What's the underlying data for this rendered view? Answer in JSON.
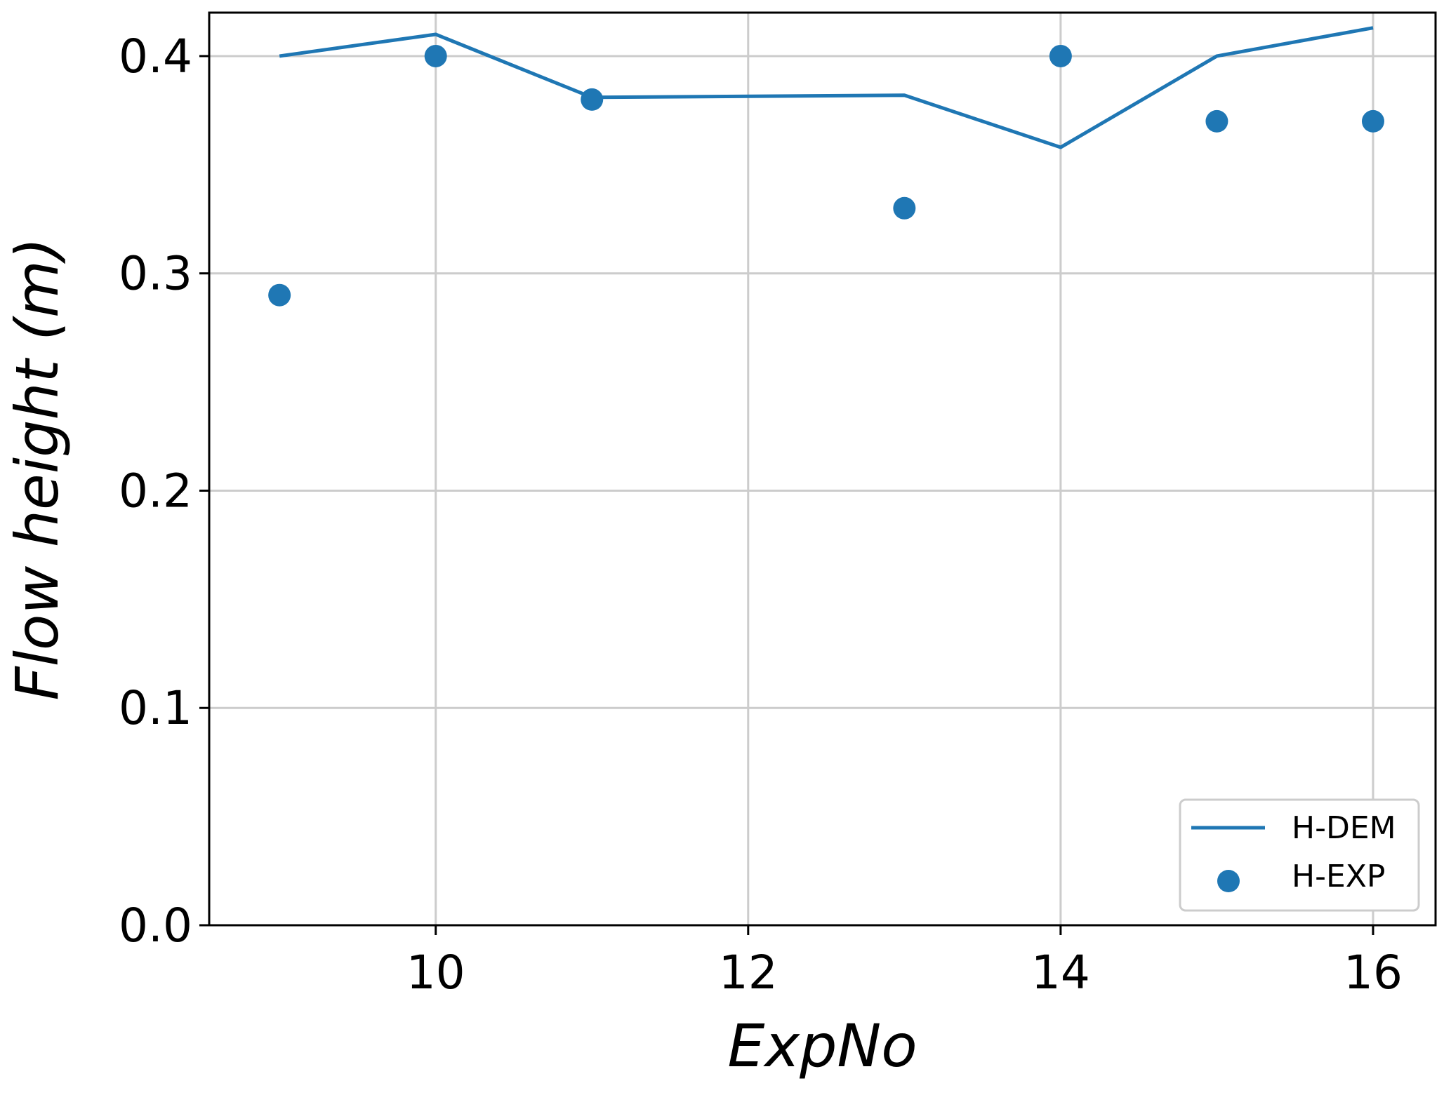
{
  "chart_data": {
    "type": "line",
    "title": "",
    "xlabel": "ExpNo",
    "ylabel": "Flow height (m)",
    "xlim": [
      8.55,
      16.4
    ],
    "ylim": [
      0.0,
      0.42
    ],
    "xticks": [
      10,
      12,
      14,
      16
    ],
    "xtick_labels": [
      "10",
      "12",
      "14",
      "16"
    ],
    "yticks": [
      0.0,
      0.1,
      0.2,
      0.3,
      0.4
    ],
    "ytick_labels": [
      "0.0",
      "0.1",
      "0.2",
      "0.3",
      "0.4"
    ],
    "grid": true,
    "legend_position": "bottom-right",
    "color": "#1f77b4",
    "series": [
      {
        "name": "H-DEM",
        "kind": "line",
        "x": [
          9,
          10,
          11,
          13,
          14,
          15,
          16
        ],
        "y": [
          0.4,
          0.41,
          0.381,
          0.382,
          0.358,
          0.4,
          0.413
        ]
      },
      {
        "name": "H-EXP",
        "kind": "scatter",
        "x": [
          9,
          10,
          11,
          13,
          14,
          15,
          16
        ],
        "y": [
          0.29,
          0.4,
          0.38,
          0.33,
          0.4,
          0.37,
          0.37
        ]
      }
    ]
  }
}
